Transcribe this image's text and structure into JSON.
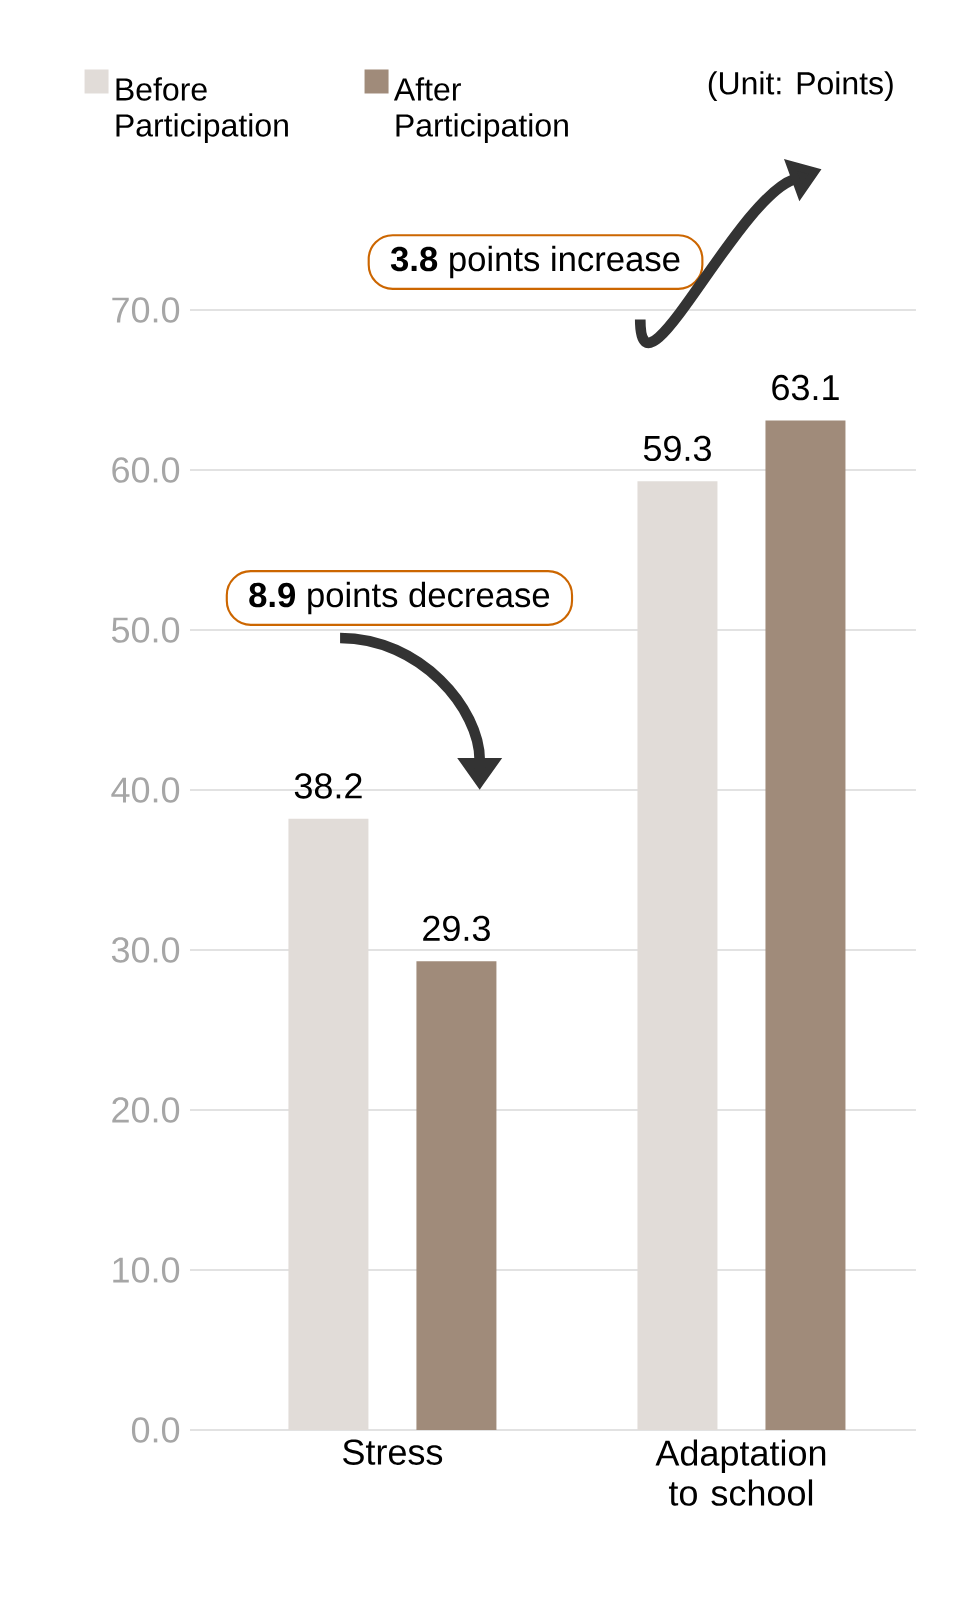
{
  "chart_data": {
    "type": "bar",
    "categories": [
      "Stress",
      "Adaptation to school"
    ],
    "series": [
      {
        "name": "Before Participation",
        "color": "#e1dcd8",
        "values": [
          38.2,
          59.3
        ]
      },
      {
        "name": "After Participation",
        "color": "#a08b7a",
        "values": [
          29.3,
          63.1
        ]
      }
    ],
    "ylim": [
      0,
      70
    ],
    "yticks": [
      {
        "value": 0,
        "label": "0.0"
      },
      {
        "value": 10,
        "label": "10.0"
      },
      {
        "value": 20,
        "label": "20.0"
      },
      {
        "value": 30,
        "label": "30.0"
      },
      {
        "value": 40,
        "label": "40.0"
      },
      {
        "value": 50,
        "label": "50.0"
      },
      {
        "value": 60,
        "label": "60.0"
      },
      {
        "value": 70,
        "label": "70.0"
      }
    ],
    "grid": "y",
    "legend": "top left",
    "data_labels": true,
    "annotations": [
      "**8.9** points decrease",
      "**3.8** points increase",
      "(Unit: Points)"
    ]
  }
}
